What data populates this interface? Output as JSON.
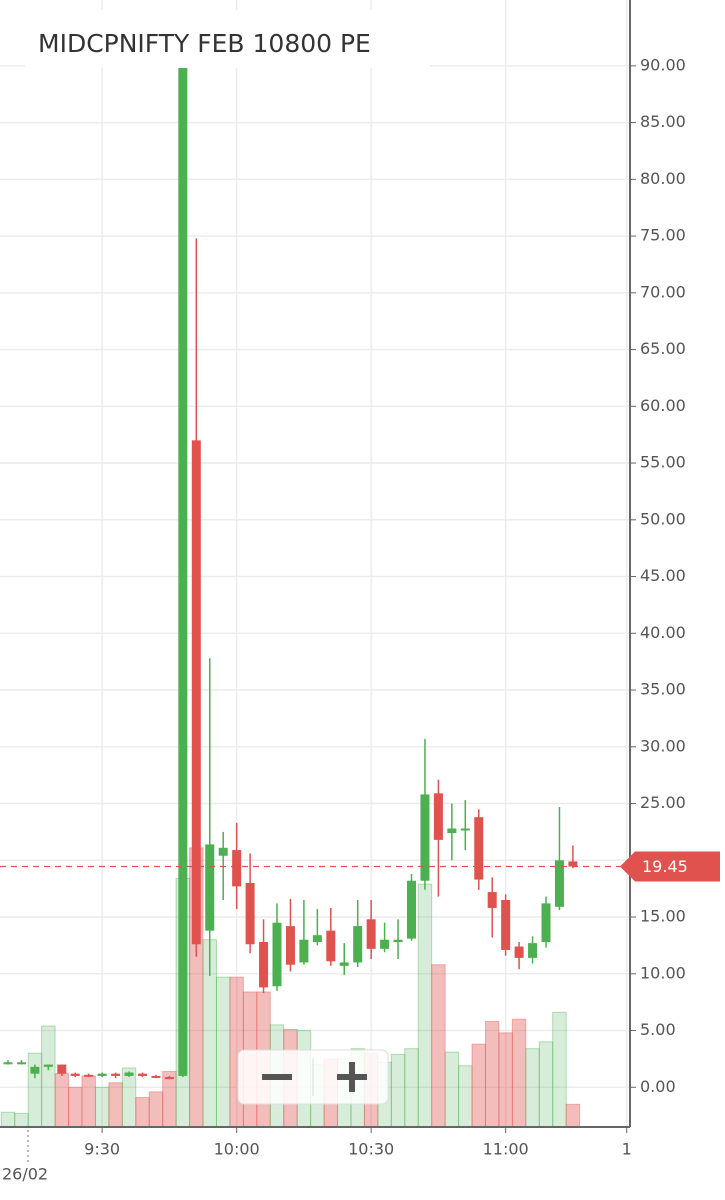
{
  "chart_data": {
    "type": "candlestick",
    "title": "MIDCPNIFTY FEB 10800 PE",
    "date_label": "26/02",
    "categories": [
      null,
      null,
      null,
      null,
      null,
      null,
      null,
      "9:30",
      null,
      null,
      null,
      null,
      null,
      null,
      null,
      null,
      null,
      "10:00",
      null,
      null,
      null,
      null,
      null,
      null,
      null,
      null,
      null,
      "10:30",
      null,
      null,
      null,
      null,
      null,
      null,
      null,
      null,
      null,
      "11:00",
      null,
      null,
      null,
      null,
      null,
      null,
      null,
      null,
      "1"
    ],
    "open": [
      2.2,
      2.2,
      1.2,
      1.8,
      2.0,
      1.2,
      1.1,
      1.0,
      1.2,
      1.0,
      1.2,
      1.0,
      0.9,
      1.0,
      57,
      13.8,
      20.4,
      20.9,
      18.0,
      12.8,
      8.9,
      14.2,
      11.0,
      12.8,
      13.8,
      10.7,
      11.0,
      14.8,
      12.2,
      12.8,
      13.1,
      18.2,
      25.9,
      22.4,
      22.8,
      23.8,
      17.2,
      16.5,
      12.4,
      11.4,
      12.8,
      15.9,
      19.9,
      null,
      null,
      null,
      null
    ],
    "high": [
      2.4,
      2.4,
      2.0,
      2.0,
      2.0,
      1.3,
      1.2,
      1.3,
      1.3,
      1.4,
      1.3,
      1.1,
      1.0,
      90,
      74.8,
      37.8,
      22.5,
      23.3,
      20.6,
      14.8,
      16.2,
      16.6,
      16.5,
      15.7,
      15.8,
      12.7,
      16.5,
      16.5,
      14.5,
      14.8,
      18.8,
      30.7,
      27.1,
      25.0,
      25.3,
      24.5,
      18.5,
      17.0,
      12.8,
      13.3,
      16.8,
      24.7,
      21.3,
      null,
      null,
      null,
      null
    ],
    "low": [
      2.0,
      2.0,
      0.8,
      1.5,
      1.0,
      0.9,
      0.9,
      0.9,
      0.8,
      0.9,
      0.9,
      0.8,
      0.7,
      0.9,
      11.5,
      9.8,
      16.5,
      15.7,
      11.8,
      8.3,
      8.5,
      10.2,
      10.8,
      12.5,
      10.7,
      9.9,
      10.6,
      11.3,
      11.9,
      11.3,
      12.9,
      17.4,
      16.8,
      20.0,
      20.9,
      17.4,
      13.2,
      11.6,
      10.4,
      10.9,
      12.3,
      15.6,
      19.3,
      null,
      null,
      null,
      null
    ],
    "close": [
      2.2,
      2.2,
      1.8,
      2.0,
      1.2,
      1.0,
      1.0,
      1.2,
      1.0,
      1.3,
      1.0,
      0.9,
      0.8,
      90,
      12.6,
      21.4,
      21.1,
      17.7,
      12.6,
      8.8,
      14.5,
      10.8,
      13.0,
      13.4,
      11.1,
      11.0,
      14.2,
      12.2,
      13.0,
      13.0,
      18.2,
      25.8,
      21.8,
      22.8,
      22.8,
      18.3,
      15.8,
      12.1,
      11.4,
      12.7,
      16.2,
      20.0,
      19.45,
      null,
      null,
      null,
      null
    ],
    "volume": [
      -2.2,
      -2.3,
      3.0,
      5.4,
      1.2,
      0,
      1.0,
      0,
      0.4,
      1.7,
      -0.9,
      -0.4,
      1.4,
      18.4,
      21.1,
      13.0,
      9.7,
      9.7,
      8.4,
      8.4,
      5.5,
      5.1,
      5.0,
      2.0,
      2.5,
      2.5,
      3.4,
      3.0,
      2.2,
      2.9,
      3.4,
      17.9,
      10.8,
      3.1,
      1.9,
      3.8,
      5.8,
      4.8,
      6.0,
      3.4,
      4.0,
      6.6,
      -1.5,
      null,
      null,
      null,
      null
    ],
    "up_color": "#4caf50",
    "down_color": "#e0524d",
    "last_price": 19.45,
    "ylim": [
      -3.5,
      95.8
    ],
    "yticks": [
      {
        "value": 0,
        "label": "0.00"
      },
      {
        "value": 5,
        "label": "5.00"
      },
      {
        "value": 10,
        "label": "10.00"
      },
      {
        "value": 15,
        "label": "15.00"
      },
      {
        "value": 20,
        "label": "20.00"
      },
      {
        "value": 25,
        "label": "25.00"
      },
      {
        "value": 30,
        "label": "30.00"
      },
      {
        "value": 35,
        "label": "35.00"
      },
      {
        "value": 40,
        "label": "40.00"
      },
      {
        "value": 45,
        "label": "45.00"
      },
      {
        "value": 50,
        "label": "50.00"
      },
      {
        "value": 55,
        "label": "55.00"
      },
      {
        "value": 60,
        "label": "60.00"
      },
      {
        "value": 65,
        "label": "65.00"
      },
      {
        "value": 70,
        "label": "70.00"
      },
      {
        "value": 75,
        "label": "75.00"
      },
      {
        "value": 80,
        "label": "80.00"
      },
      {
        "value": 85,
        "label": "85.00"
      },
      {
        "value": 90,
        "label": "90.00"
      }
    ],
    "grid": true
  }
}
